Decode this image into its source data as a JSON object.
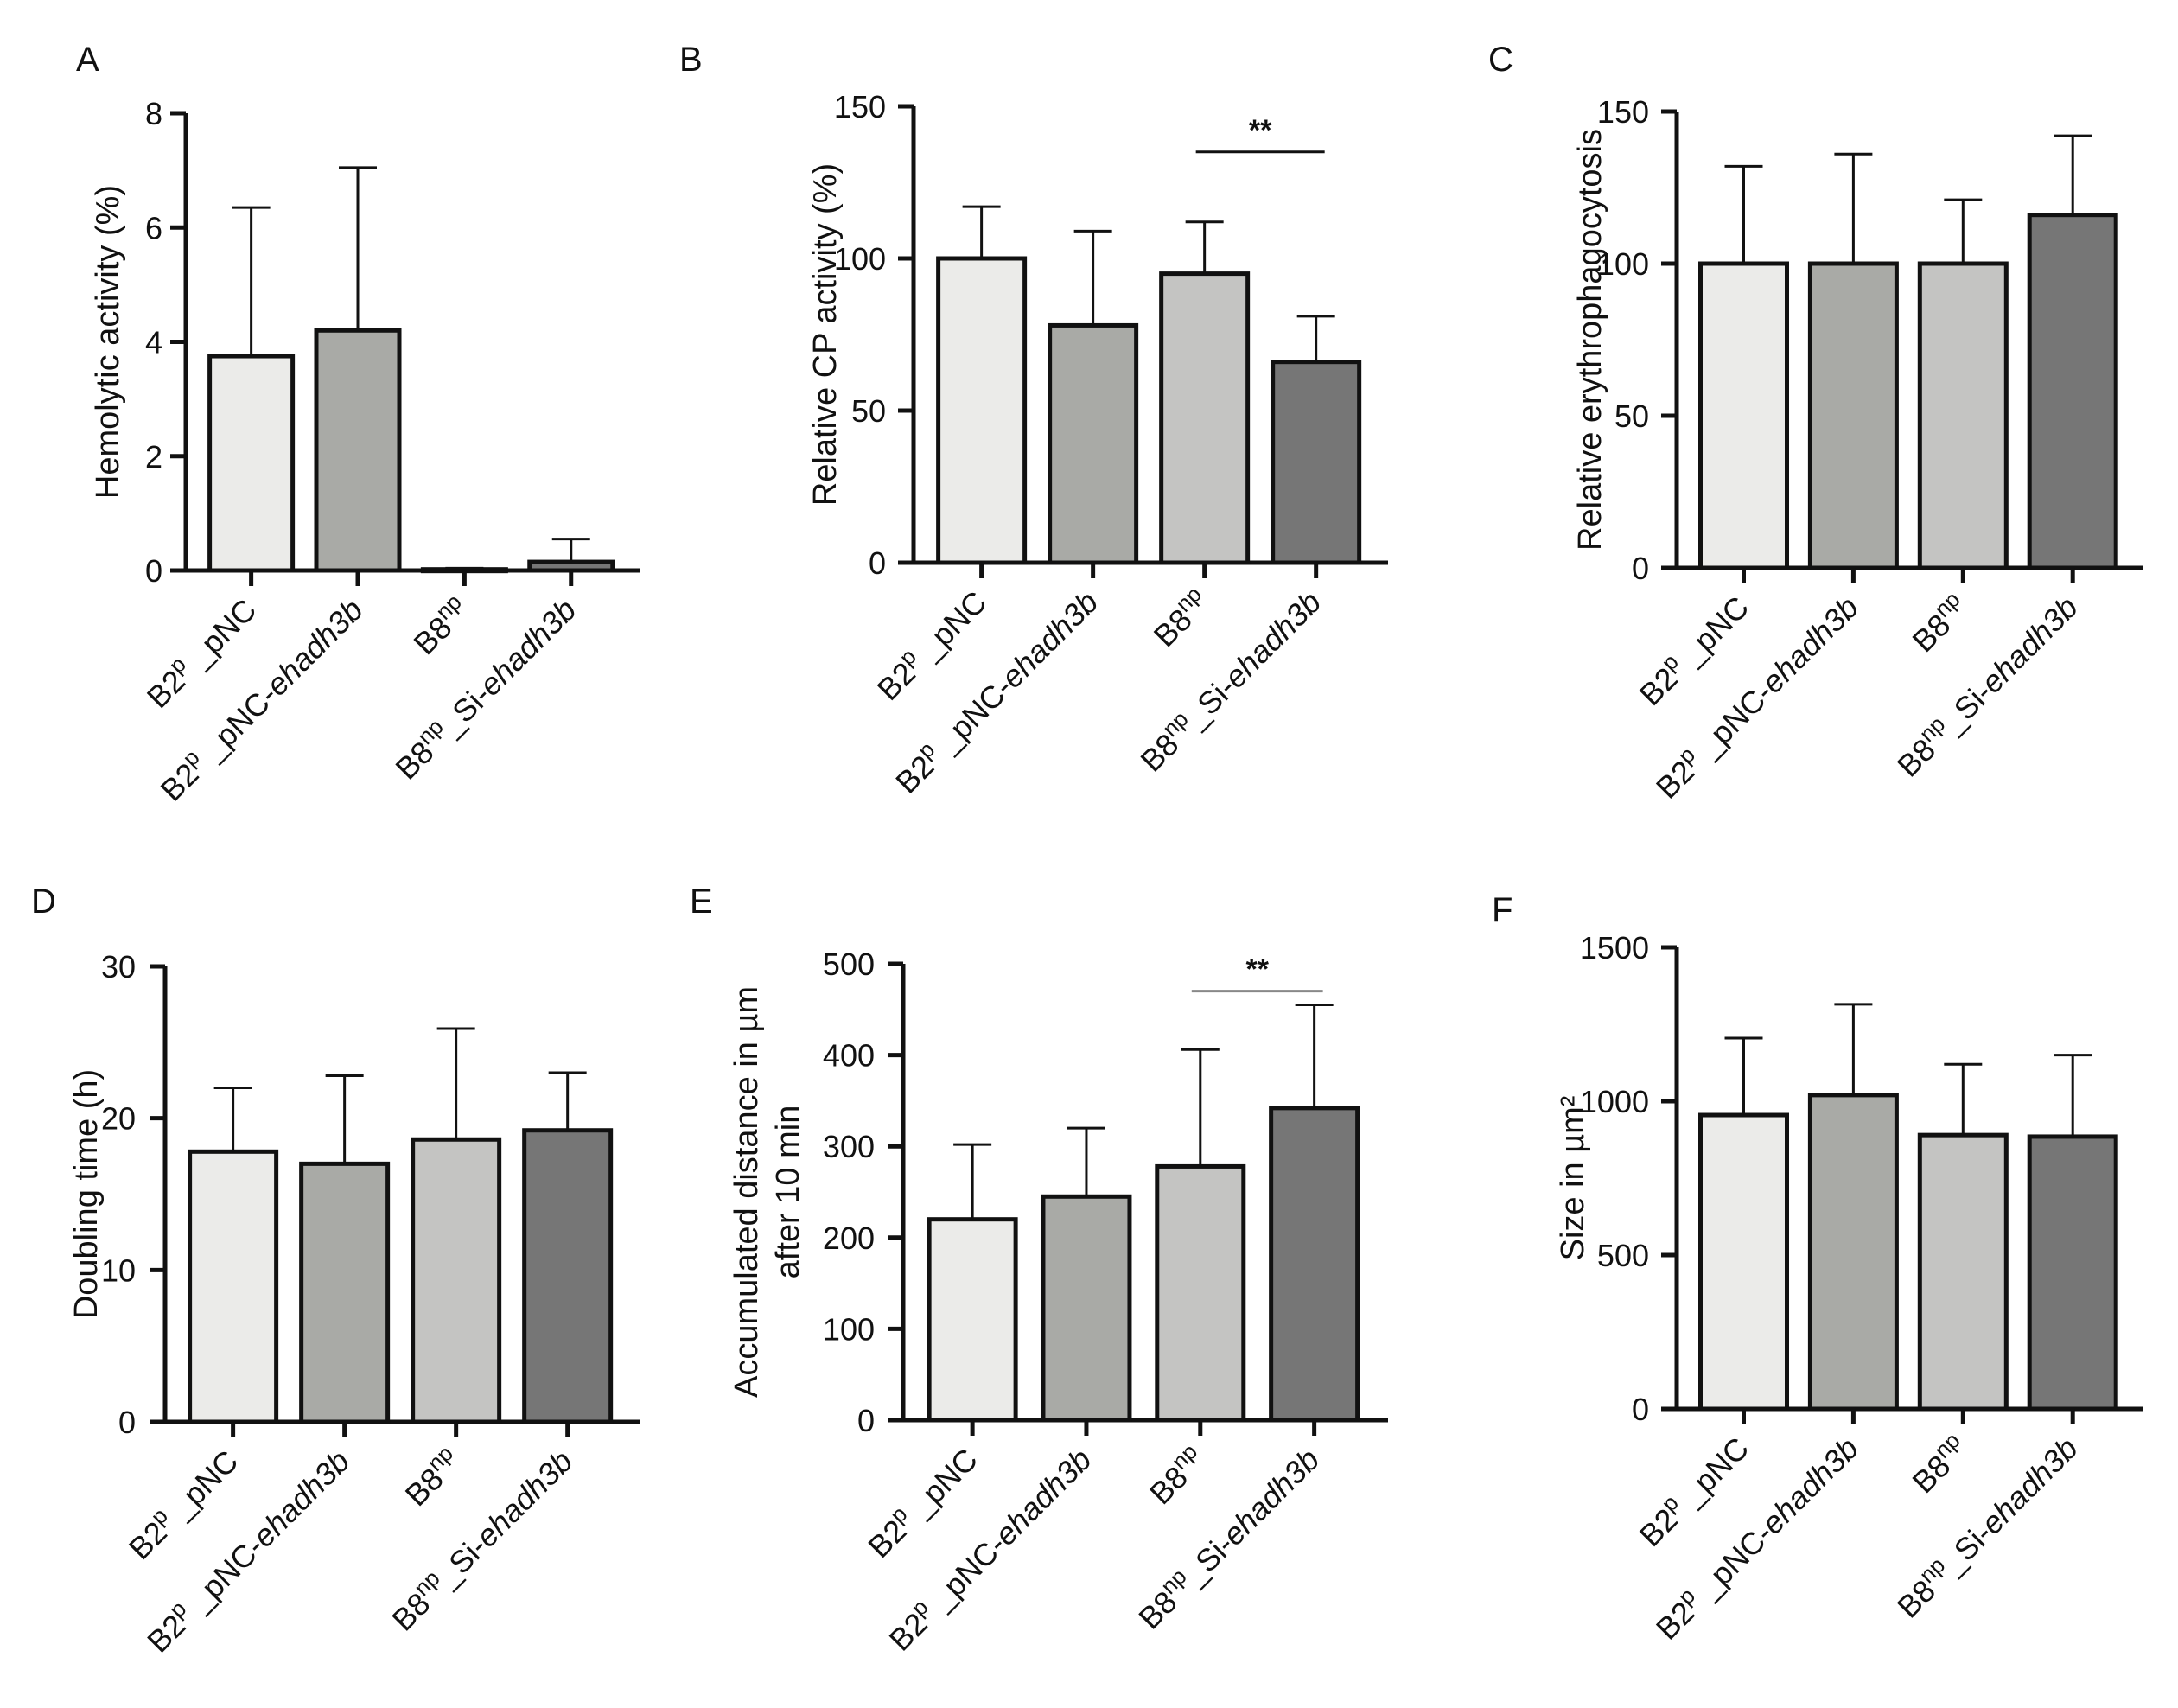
{
  "chart_data": [
    {
      "panel": "A",
      "type": "bar",
      "ylabel": [
        "Hemolytic activity (%)"
      ],
      "ylim": [
        0,
        8
      ],
      "yticks": [
        0,
        2,
        4,
        6,
        8
      ],
      "values": [
        3.75,
        4.2,
        0.02,
        0.15
      ],
      "errors": [
        2.6,
        2.85,
        0.02,
        0.4
      ],
      "significance": null
    },
    {
      "panel": "B",
      "type": "bar",
      "ylabel": [
        "Relative CP activity (%)"
      ],
      "ylim": [
        0,
        150
      ],
      "yticks": [
        0,
        50,
        100,
        150
      ],
      "values": [
        100,
        78,
        95,
        66
      ],
      "errors": [
        17,
        31,
        17,
        15
      ],
      "significance": {
        "from": 2,
        "to": 3,
        "label": "**"
      }
    },
    {
      "panel": "C",
      "type": "bar",
      "ylabel": [
        "Relative  erythrophagocytosis"
      ],
      "ylim": [
        0,
        150
      ],
      "yticks": [
        0,
        50,
        100,
        150
      ],
      "values": [
        100,
        100,
        100,
        116
      ],
      "errors": [
        32,
        36,
        21,
        26
      ],
      "significance": null
    },
    {
      "panel": "D",
      "type": "bar",
      "ylabel": [
        "Doubling time (h)"
      ],
      "ylim": [
        0,
        30
      ],
      "yticks": [
        0,
        10,
        20,
        30
      ],
      "values": [
        17.8,
        17.0,
        18.6,
        19.2
      ],
      "errors": [
        4.2,
        5.8,
        7.3,
        3.8
      ],
      "significance": null
    },
    {
      "panel": "E",
      "type": "bar",
      "ylabel": [
        "Accumulated distance in µm",
        "after 10 min"
      ],
      "ylim": [
        0,
        500
      ],
      "yticks": [
        0,
        100,
        200,
        300,
        400,
        500
      ],
      "values": [
        220,
        245,
        278,
        342
      ],
      "errors": [
        82,
        75,
        128,
        113
      ],
      "significance": {
        "from": 2,
        "to": 3,
        "label": "**"
      }
    },
    {
      "panel": "F",
      "type": "bar",
      "ylabel": [
        "Size in µm²"
      ],
      "ylim": [
        0,
        1500
      ],
      "yticks": [
        0,
        500,
        1000,
        1500
      ],
      "values": [
        955,
        1020,
        890,
        885
      ],
      "errors": [
        250,
        295,
        230,
        265
      ],
      "significance": null
    }
  ],
  "categories": [
    {
      "base": "B2",
      "sup": "p",
      "rest": " _pNC",
      "italic": ""
    },
    {
      "base": "B2",
      "sup": "p",
      "rest": " _pNC-",
      "italic": "ehadh3b"
    },
    {
      "base": "B8",
      "sup": "np",
      "rest": "",
      "italic": ""
    },
    {
      "base": "B8",
      "sup": "np",
      "rest": "_Si-",
      "italic": "ehadh3b"
    }
  ],
  "bar_colors": [
    "#ebebe9",
    "#a9aaa6",
    "#c4c4c2",
    "#767676"
  ]
}
